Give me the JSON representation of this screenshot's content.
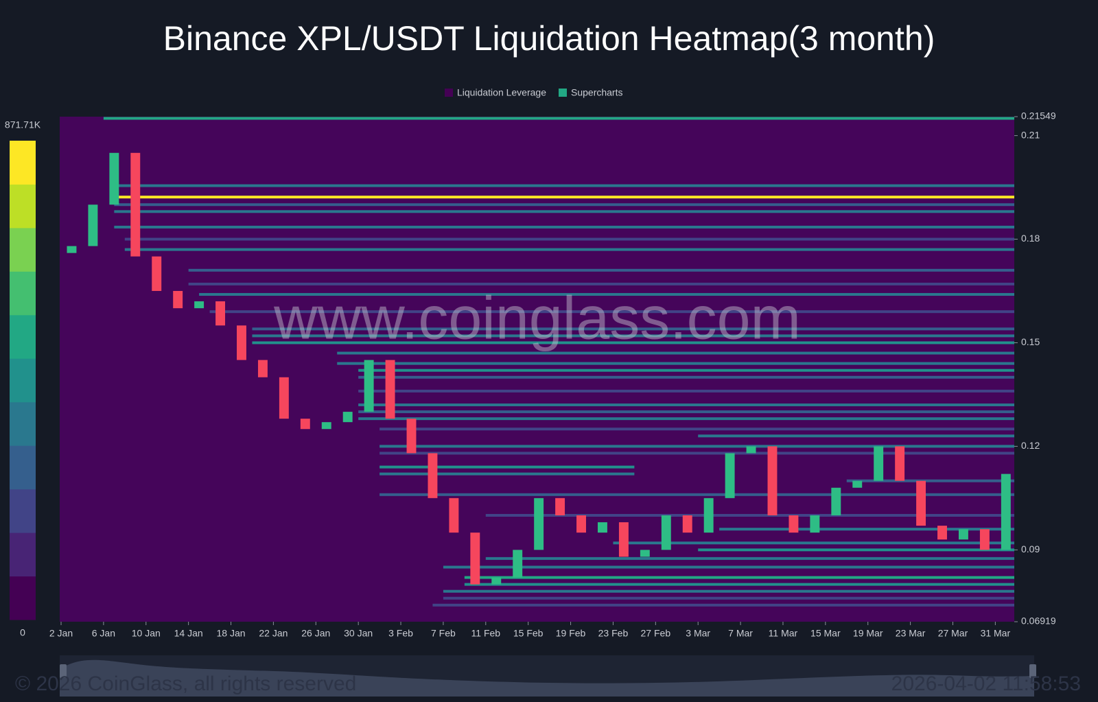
{
  "chart_data": {
    "type": "heatmap",
    "title": "Binance XPL/USDT Liquidation Heatmap(3 month)",
    "watermark": "www.coinglass.com",
    "footer": "© 2026 CoinGlass, all rights reserved",
    "timestamp": "2026-04-02 11:58:53",
    "legend": [
      {
        "name": "Liquidation Leverage",
        "color": "#440154"
      },
      {
        "name": "Supercharts",
        "color": "#22a884"
      }
    ],
    "background": "#45055a",
    "xlim": [
      0,
      90
    ],
    "xticks": [
      {
        "value": 0,
        "label": "2 Jan"
      },
      {
        "value": 4,
        "label": "6 Jan"
      },
      {
        "value": 8,
        "label": "10 Jan"
      },
      {
        "value": 12,
        "label": "14 Jan"
      },
      {
        "value": 16,
        "label": "18 Jan"
      },
      {
        "value": 20,
        "label": "22 Jan"
      },
      {
        "value": 24,
        "label": "26 Jan"
      },
      {
        "value": 28,
        "label": "30 Jan"
      },
      {
        "value": 32,
        "label": "3 Feb"
      },
      {
        "value": 36,
        "label": "7 Feb"
      },
      {
        "value": 40,
        "label": "11 Feb"
      },
      {
        "value": 44,
        "label": "15 Feb"
      },
      {
        "value": 48,
        "label": "19 Feb"
      },
      {
        "value": 52,
        "label": "23 Feb"
      },
      {
        "value": 56,
        "label": "27 Feb"
      },
      {
        "value": 60,
        "label": "3 Mar"
      },
      {
        "value": 64,
        "label": "7 Mar"
      },
      {
        "value": 68,
        "label": "11 Mar"
      },
      {
        "value": 72,
        "label": "15 Mar"
      },
      {
        "value": 76,
        "label": "19 Mar"
      },
      {
        "value": 80,
        "label": "23 Mar"
      },
      {
        "value": 84,
        "label": "27 Mar"
      },
      {
        "value": 88,
        "label": "31 Mar"
      }
    ],
    "ylim": [
      0.06919,
      0.21549
    ],
    "yticks": [
      0.21549,
      0.21,
      0.18,
      0.15,
      0.12,
      0.09,
      0.06919
    ],
    "colorbar": {
      "range": [
        0,
        871710
      ],
      "labels": [
        {
          "value": 871710,
          "label": "871.71K"
        },
        0
      ],
      "colors": [
        "#440154",
        "#482475",
        "#414487",
        "#355f8d",
        "#2a788e",
        "#21918c",
        "#22a884",
        "#44bf70",
        "#7ad151",
        "#bddf26",
        "#fde725"
      ]
    },
    "up_color": "#2ebd85",
    "down_color": "#f6465d",
    "levels": [
      {
        "price": 0.215,
        "start": 4,
        "end": 90,
        "value": 500000
      },
      {
        "price": 0.1955,
        "start": 5,
        "end": 90,
        "value": 320000
      },
      {
        "price": 0.1922,
        "start": 5,
        "end": 90,
        "value": 860000
      },
      {
        "price": 0.19,
        "start": 5,
        "end": 90,
        "value": 260000
      },
      {
        "price": 0.188,
        "start": 5,
        "end": 90,
        "value": 320000
      },
      {
        "price": 0.1835,
        "start": 5,
        "end": 90,
        "value": 380000
      },
      {
        "price": 0.18,
        "start": 6,
        "end": 90,
        "value": 220000
      },
      {
        "price": 0.177,
        "start": 6,
        "end": 90,
        "value": 330000
      },
      {
        "price": 0.171,
        "start": 12,
        "end": 90,
        "value": 260000
      },
      {
        "price": 0.167,
        "start": 12,
        "end": 90,
        "value": 220000
      },
      {
        "price": 0.164,
        "start": 13,
        "end": 90,
        "value": 380000
      },
      {
        "price": 0.159,
        "start": 14,
        "end": 90,
        "value": 220000
      },
      {
        "price": 0.154,
        "start": 18,
        "end": 90,
        "value": 260000
      },
      {
        "price": 0.152,
        "start": 18,
        "end": 90,
        "value": 330000
      },
      {
        "price": 0.15,
        "start": 18,
        "end": 90,
        "value": 450000
      },
      {
        "price": 0.147,
        "start": 26,
        "end": 90,
        "value": 330000
      },
      {
        "price": 0.144,
        "start": 26,
        "end": 90,
        "value": 380000
      },
      {
        "price": 0.142,
        "start": 28,
        "end": 90,
        "value": 420000
      },
      {
        "price": 0.14,
        "start": 28,
        "end": 90,
        "value": 260000
      },
      {
        "price": 0.136,
        "start": 28,
        "end": 90,
        "value": 220000
      },
      {
        "price": 0.132,
        "start": 28,
        "end": 90,
        "value": 330000
      },
      {
        "price": 0.13,
        "start": 28,
        "end": 90,
        "value": 260000
      },
      {
        "price": 0.128,
        "start": 28,
        "end": 90,
        "value": 380000
      },
      {
        "price": 0.125,
        "start": 30,
        "end": 90,
        "value": 220000
      },
      {
        "price": 0.123,
        "start": 60,
        "end": 90,
        "value": 330000
      },
      {
        "price": 0.12,
        "start": 30,
        "end": 90,
        "value": 380000
      },
      {
        "price": 0.118,
        "start": 30,
        "end": 90,
        "value": 220000
      },
      {
        "price": 0.114,
        "start": 30,
        "end": 54,
        "value": 420000
      },
      {
        "price": 0.112,
        "start": 30,
        "end": 54,
        "value": 330000
      },
      {
        "price": 0.11,
        "start": 74,
        "end": 90,
        "value": 260000
      },
      {
        "price": 0.106,
        "start": 30,
        "end": 90,
        "value": 260000
      },
      {
        "price": 0.1,
        "start": 40,
        "end": 90,
        "value": 220000
      },
      {
        "price": 0.096,
        "start": 62,
        "end": 90,
        "value": 330000
      },
      {
        "price": 0.092,
        "start": 52,
        "end": 90,
        "value": 380000
      },
      {
        "price": 0.09,
        "start": 60,
        "end": 90,
        "value": 420000
      },
      {
        "price": 0.0875,
        "start": 40,
        "end": 90,
        "value": 330000
      },
      {
        "price": 0.085,
        "start": 36,
        "end": 90,
        "value": 380000
      },
      {
        "price": 0.082,
        "start": 38,
        "end": 90,
        "value": 520000
      },
      {
        "price": 0.08,
        "start": 38,
        "end": 90,
        "value": 470000
      },
      {
        "price": 0.078,
        "start": 36,
        "end": 90,
        "value": 330000
      },
      {
        "price": 0.076,
        "start": 36,
        "end": 90,
        "value": 220000
      },
      {
        "price": 0.074,
        "start": 35,
        "end": 90,
        "value": 220000
      }
    ],
    "x": [
      0,
      2,
      4,
      6,
      8,
      10,
      12,
      14,
      16,
      18,
      20,
      22,
      24,
      26,
      28,
      30,
      32,
      34,
      36,
      38,
      40,
      42,
      44,
      46,
      48,
      50,
      52,
      54,
      56,
      58,
      60,
      62,
      64,
      66,
      68,
      70,
      72,
      74,
      76,
      78,
      80,
      82,
      84,
      86,
      88
    ],
    "open": [
      0.176,
      0.178,
      0.19,
      0.205,
      0.175,
      0.165,
      0.16,
      0.162,
      0.155,
      0.145,
      0.14,
      0.128,
      0.125,
      0.127,
      0.13,
      0.145,
      0.128,
      0.118,
      0.105,
      0.095,
      0.08,
      0.082,
      0.09,
      0.105,
      0.1,
      0.095,
      0.098,
      0.088,
      0.09,
      0.1,
      0.095,
      0.105,
      0.118,
      0.12,
      0.1,
      0.095,
      0.1,
      0.108,
      0.11,
      0.12,
      0.11,
      0.097,
      0.093,
      0.096,
      0.09
    ],
    "close": [
      0.178,
      0.19,
      0.205,
      0.175,
      0.165,
      0.16,
      0.162,
      0.155,
      0.145,
      0.14,
      0.128,
      0.125,
      0.127,
      0.13,
      0.145,
      0.128,
      0.118,
      0.105,
      0.095,
      0.08,
      0.082,
      0.09,
      0.105,
      0.1,
      0.095,
      0.098,
      0.088,
      0.09,
      0.1,
      0.095,
      0.105,
      0.118,
      0.12,
      0.1,
      0.095,
      0.1,
      0.108,
      0.11,
      0.12,
      0.11,
      0.097,
      0.093,
      0.096,
      0.09,
      0.112
    ]
  }
}
